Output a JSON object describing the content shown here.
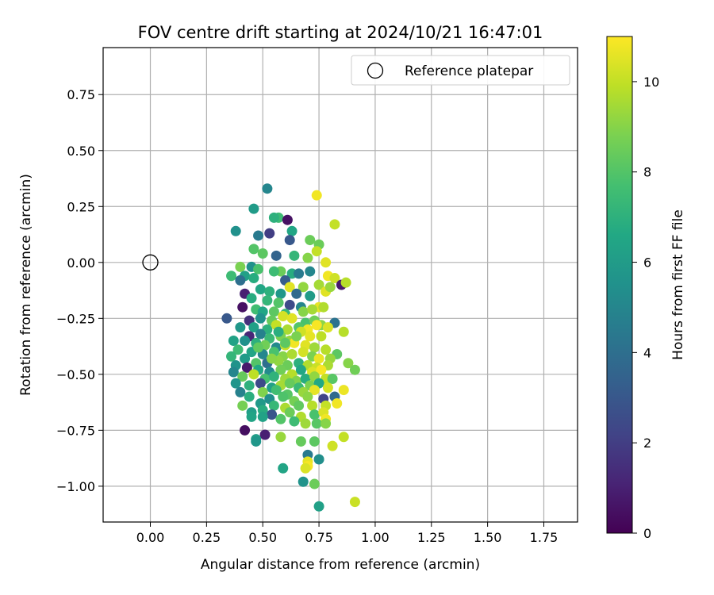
{
  "chart_data": {
    "type": "scatter",
    "title": "FOV centre drift starting at 2024/10/21 16:47:01",
    "xlabel": "Angular distance from reference (arcmin)",
    "ylabel": "Rotation from reference (arcmin)",
    "xlim": [
      -0.21,
      1.9
    ],
    "ylim": [
      -1.16,
      0.96
    ],
    "xticks": [
      "0.00",
      "0.25",
      "0.50",
      "0.75",
      "1.00",
      "1.25",
      "1.50",
      "1.75"
    ],
    "xtick_values": [
      0,
      0.25,
      0.5,
      0.75,
      1.0,
      1.25,
      1.5,
      1.75
    ],
    "yticks": [
      "−1.00",
      "−0.75",
      "−0.50",
      "−0.25",
      "0.00",
      "0.25",
      "0.50",
      "0.75"
    ],
    "ytick_values": [
      -1.0,
      -0.75,
      -0.5,
      -0.25,
      0,
      0.25,
      0.5,
      0.75
    ],
    "grid": true,
    "legend": {
      "placement": "top-right",
      "entries": [
        "Reference platepar"
      ]
    },
    "reference_point": {
      "x": 0.0,
      "y": 0.0
    },
    "colorbar": {
      "label": "Hours from first FF file",
      "range": [
        0,
        11
      ],
      "ticks": [
        "0",
        "2",
        "4",
        "6",
        "8",
        "10"
      ],
      "tick_values": [
        0,
        2,
        4,
        6,
        8,
        10
      ],
      "colormap": "viridis"
    },
    "series": [
      {
        "points": [
          [
            0.52,
            0.33,
            5.0
          ],
          [
            0.74,
            0.3,
            10.8
          ],
          [
            0.46,
            0.24,
            6.0
          ],
          [
            0.57,
            0.2,
            7.5
          ],
          [
            0.61,
            0.19,
            0.5
          ],
          [
            0.55,
            0.2,
            7.0
          ],
          [
            0.38,
            0.14,
            5.5
          ],
          [
            0.48,
            0.12,
            4.5
          ],
          [
            0.53,
            0.13,
            2.0
          ],
          [
            0.63,
            0.14,
            6.5
          ],
          [
            0.82,
            0.17,
            10.0
          ],
          [
            0.71,
            0.1,
            8.5
          ],
          [
            0.62,
            0.1,
            3.0
          ],
          [
            0.75,
            0.08,
            8.5
          ],
          [
            0.46,
            0.06,
            8.0
          ],
          [
            0.5,
            0.04,
            8.2
          ],
          [
            0.56,
            0.03,
            3.5
          ],
          [
            0.64,
            0.03,
            7.2
          ],
          [
            0.74,
            0.05,
            10.0
          ],
          [
            0.7,
            0.02,
            9.0
          ],
          [
            0.78,
            0.0,
            10.5
          ],
          [
            0.4,
            -0.02,
            8.8
          ],
          [
            0.45,
            -0.02,
            5.5
          ],
          [
            0.48,
            -0.03,
            7.8
          ],
          [
            0.58,
            -0.04,
            8.5
          ],
          [
            0.63,
            -0.05,
            6.8
          ],
          [
            0.66,
            -0.05,
            4.5
          ],
          [
            0.71,
            -0.04,
            5.0
          ],
          [
            0.36,
            -0.06,
            7.5
          ],
          [
            0.42,
            -0.06,
            6.2
          ],
          [
            0.4,
            -0.08,
            4.0
          ],
          [
            0.46,
            -0.07,
            6.8
          ],
          [
            0.55,
            -0.04,
            7.5
          ],
          [
            0.6,
            -0.08,
            3.2
          ],
          [
            0.79,
            -0.06,
            10.8
          ],
          [
            0.82,
            -0.07,
            10.2
          ],
          [
            0.85,
            -0.1,
            0.8
          ],
          [
            0.87,
            -0.09,
            9.8
          ],
          [
            0.75,
            -0.1,
            9.5
          ],
          [
            0.68,
            -0.11,
            9.2
          ],
          [
            0.62,
            -0.11,
            10.5
          ],
          [
            0.42,
            -0.14,
            1.0
          ],
          [
            0.49,
            -0.12,
            6.5
          ],
          [
            0.53,
            -0.13,
            7.0
          ],
          [
            0.58,
            -0.14,
            5.8
          ],
          [
            0.65,
            -0.14,
            3.8
          ],
          [
            0.71,
            -0.15,
            6.0
          ],
          [
            0.78,
            -0.13,
            10.5
          ],
          [
            0.8,
            -0.11,
            9.3
          ],
          [
            0.45,
            -0.16,
            6.8
          ],
          [
            0.52,
            -0.17,
            7.2
          ],
          [
            0.57,
            -0.18,
            8.0
          ],
          [
            0.62,
            -0.19,
            2.5
          ],
          [
            0.67,
            -0.2,
            5.0
          ],
          [
            0.75,
            -0.2,
            10.6
          ],
          [
            0.41,
            -0.2,
            0.5
          ],
          [
            0.47,
            -0.21,
            7.6
          ],
          [
            0.5,
            -0.22,
            6.5
          ],
          [
            0.55,
            -0.22,
            8.2
          ],
          [
            0.6,
            -0.23,
            7.3
          ],
          [
            0.68,
            -0.22,
            9.0
          ],
          [
            0.72,
            -0.21,
            9.5
          ],
          [
            0.77,
            -0.2,
            9.7
          ],
          [
            0.34,
            -0.25,
            3.0
          ],
          [
            0.44,
            -0.26,
            1.5
          ],
          [
            0.49,
            -0.25,
            5.5
          ],
          [
            0.54,
            -0.26,
            8.4
          ],
          [
            0.59,
            -0.24,
            10.3
          ],
          [
            0.63,
            -0.25,
            10.5
          ],
          [
            0.69,
            -0.27,
            7.8
          ],
          [
            0.73,
            -0.26,
            8.6
          ],
          [
            0.76,
            -0.28,
            9.1
          ],
          [
            0.82,
            -0.27,
            4.2
          ],
          [
            0.4,
            -0.29,
            5.8
          ],
          [
            0.46,
            -0.29,
            6.2
          ],
          [
            0.52,
            -0.3,
            7.0
          ],
          [
            0.56,
            -0.28,
            10.0
          ],
          [
            0.61,
            -0.3,
            9.6
          ],
          [
            0.66,
            -0.29,
            8.0
          ],
          [
            0.7,
            -0.3,
            10.8
          ],
          [
            0.74,
            -0.28,
            10.9
          ],
          [
            0.79,
            -0.29,
            10.4
          ],
          [
            0.86,
            -0.31,
            9.8
          ],
          [
            0.44,
            -0.33,
            1.2
          ],
          [
            0.49,
            -0.32,
            4.8
          ],
          [
            0.53,
            -0.34,
            7.4
          ],
          [
            0.58,
            -0.33,
            8.8
          ],
          [
            0.62,
            -0.35,
            9.2
          ],
          [
            0.67,
            -0.31,
            10.2
          ],
          [
            0.71,
            -0.33,
            10.6
          ],
          [
            0.76,
            -0.33,
            9.9
          ],
          [
            0.37,
            -0.35,
            6.3
          ],
          [
            0.42,
            -0.35,
            5.5
          ],
          [
            0.47,
            -0.36,
            7.0
          ],
          [
            0.51,
            -0.37,
            8.6
          ],
          [
            0.56,
            -0.38,
            5.2
          ],
          [
            0.6,
            -0.37,
            10.1
          ],
          [
            0.64,
            -0.36,
            10.8
          ],
          [
            0.69,
            -0.37,
            10.5
          ],
          [
            0.73,
            -0.38,
            9.4
          ],
          [
            0.78,
            -0.39,
            9.8
          ],
          [
            0.83,
            -0.41,
            8.2
          ],
          [
            0.39,
            -0.39,
            7.5
          ],
          [
            0.45,
            -0.4,
            6.4
          ],
          [
            0.5,
            -0.41,
            5.0
          ],
          [
            0.55,
            -0.4,
            7.8
          ],
          [
            0.59,
            -0.42,
            9.0
          ],
          [
            0.63,
            -0.41,
            9.6
          ],
          [
            0.68,
            -0.4,
            10.3
          ],
          [
            0.72,
            -0.42,
            8.8
          ],
          [
            0.75,
            -0.43,
            10.7
          ],
          [
            0.8,
            -0.43,
            9.3
          ],
          [
            0.36,
            -0.42,
            7.2
          ],
          [
            0.42,
            -0.43,
            6.0
          ],
          [
            0.47,
            -0.45,
            8.0
          ],
          [
            0.52,
            -0.45,
            4.0
          ],
          [
            0.57,
            -0.44,
            9.2
          ],
          [
            0.61,
            -0.46,
            8.5
          ],
          [
            0.66,
            -0.45,
            7.0
          ],
          [
            0.7,
            -0.46,
            9.7
          ],
          [
            0.74,
            -0.47,
            10.1
          ],
          [
            0.79,
            -0.46,
            9.6
          ],
          [
            0.88,
            -0.45,
            9.0
          ],
          [
            0.91,
            -0.48,
            8.6
          ],
          [
            0.38,
            -0.46,
            5.6
          ],
          [
            0.43,
            -0.47,
            0.8
          ],
          [
            0.48,
            -0.48,
            6.6
          ],
          [
            0.53,
            -0.49,
            5.2
          ],
          [
            0.58,
            -0.48,
            8.6
          ],
          [
            0.63,
            -0.5,
            9.8
          ],
          [
            0.67,
            -0.48,
            6.5
          ],
          [
            0.72,
            -0.49,
            10.4
          ],
          [
            0.76,
            -0.48,
            10.9
          ],
          [
            0.37,
            -0.49,
            5.0
          ],
          [
            0.41,
            -0.51,
            8.4
          ],
          [
            0.46,
            -0.5,
            9.9
          ],
          [
            0.51,
            -0.52,
            7.7
          ],
          [
            0.55,
            -0.51,
            7.1
          ],
          [
            0.6,
            -0.52,
            9.4
          ],
          [
            0.65,
            -0.53,
            8.9
          ],
          [
            0.69,
            -0.52,
            6.8
          ],
          [
            0.73,
            -0.51,
            9.2
          ],
          [
            0.78,
            -0.52,
            10.0
          ],
          [
            0.81,
            -0.52,
            8.1
          ],
          [
            0.38,
            -0.54,
            5.7
          ],
          [
            0.44,
            -0.55,
            7.0
          ],
          [
            0.49,
            -0.54,
            2.5
          ],
          [
            0.54,
            -0.56,
            6.2
          ],
          [
            0.58,
            -0.55,
            9.5
          ],
          [
            0.62,
            -0.54,
            8.4
          ],
          [
            0.66,
            -0.56,
            7.4
          ],
          [
            0.71,
            -0.55,
            8.8
          ],
          [
            0.75,
            -0.54,
            6.6
          ],
          [
            0.79,
            -0.56,
            10.3
          ],
          [
            0.4,
            -0.58,
            4.8
          ],
          [
            0.5,
            -0.58,
            8.9
          ],
          [
            0.56,
            -0.57,
            7.6
          ],
          [
            0.61,
            -0.59,
            8.1
          ],
          [
            0.68,
            -0.58,
            9.3
          ],
          [
            0.73,
            -0.57,
            10.6
          ],
          [
            0.86,
            -0.57,
            10.7
          ],
          [
            0.44,
            -0.6,
            6.9
          ],
          [
            0.53,
            -0.61,
            5.4
          ],
          [
            0.59,
            -0.6,
            7.9
          ],
          [
            0.64,
            -0.62,
            8.7
          ],
          [
            0.7,
            -0.6,
            9.1
          ],
          [
            0.77,
            -0.61,
            2.2
          ],
          [
            0.82,
            -0.6,
            3.8
          ],
          [
            0.41,
            -0.64,
            8.7
          ],
          [
            0.49,
            -0.63,
            5.9
          ],
          [
            0.55,
            -0.64,
            7.3
          ],
          [
            0.6,
            -0.65,
            9.6
          ],
          [
            0.66,
            -0.64,
            8.3
          ],
          [
            0.72,
            -0.64,
            9.8
          ],
          [
            0.78,
            -0.64,
            10.0
          ],
          [
            0.83,
            -0.63,
            10.8
          ],
          [
            0.45,
            -0.67,
            6.1
          ],
          [
            0.5,
            -0.66,
            6.8
          ],
          [
            0.54,
            -0.68,
            2.9
          ],
          [
            0.62,
            -0.67,
            8.5
          ],
          [
            0.67,
            -0.69,
            9.7
          ],
          [
            0.73,
            -0.68,
            7.8
          ],
          [
            0.77,
            -0.67,
            10.4
          ],
          [
            0.45,
            -0.69,
            6.4
          ],
          [
            0.5,
            -0.69,
            6.3
          ],
          [
            0.58,
            -0.7,
            8.0
          ],
          [
            0.64,
            -0.71,
            7.5
          ],
          [
            0.69,
            -0.72,
            9.4
          ],
          [
            0.78,
            -0.7,
            10.8
          ],
          [
            0.74,
            -0.72,
            8.1
          ],
          [
            0.78,
            -0.72,
            9.0
          ],
          [
            0.42,
            -0.75,
            0.4
          ],
          [
            0.51,
            -0.77,
            1.0
          ],
          [
            0.58,
            -0.78,
            9.3
          ],
          [
            0.47,
            -0.79,
            6.1
          ],
          [
            0.47,
            -0.8,
            5.8
          ],
          [
            0.67,
            -0.8,
            8.4
          ],
          [
            0.73,
            -0.8,
            8.2
          ],
          [
            0.81,
            -0.82,
            10.2
          ],
          [
            0.86,
            -0.78,
            10.0
          ],
          [
            0.7,
            -0.86,
            4.5
          ],
          [
            0.75,
            -0.88,
            5.4
          ],
          [
            0.7,
            -0.89,
            10.6
          ],
          [
            0.7,
            -0.91,
            10.9
          ],
          [
            0.69,
            -0.92,
            10.4
          ],
          [
            0.59,
            -0.92,
            6.4
          ],
          [
            0.68,
            -0.98,
            5.6
          ],
          [
            0.73,
            -0.99,
            8.5
          ],
          [
            0.75,
            -1.09,
            6.2
          ],
          [
            0.91,
            -1.07,
            10.1
          ],
          [
            0.6,
            -0.36,
            8.2
          ],
          [
            0.57,
            -0.31,
            6.9
          ],
          [
            0.65,
            -0.33,
            8.8
          ],
          [
            0.54,
            -0.43,
            9.1
          ],
          [
            0.48,
            -0.38,
            8.3
          ]
        ]
      }
    ]
  }
}
